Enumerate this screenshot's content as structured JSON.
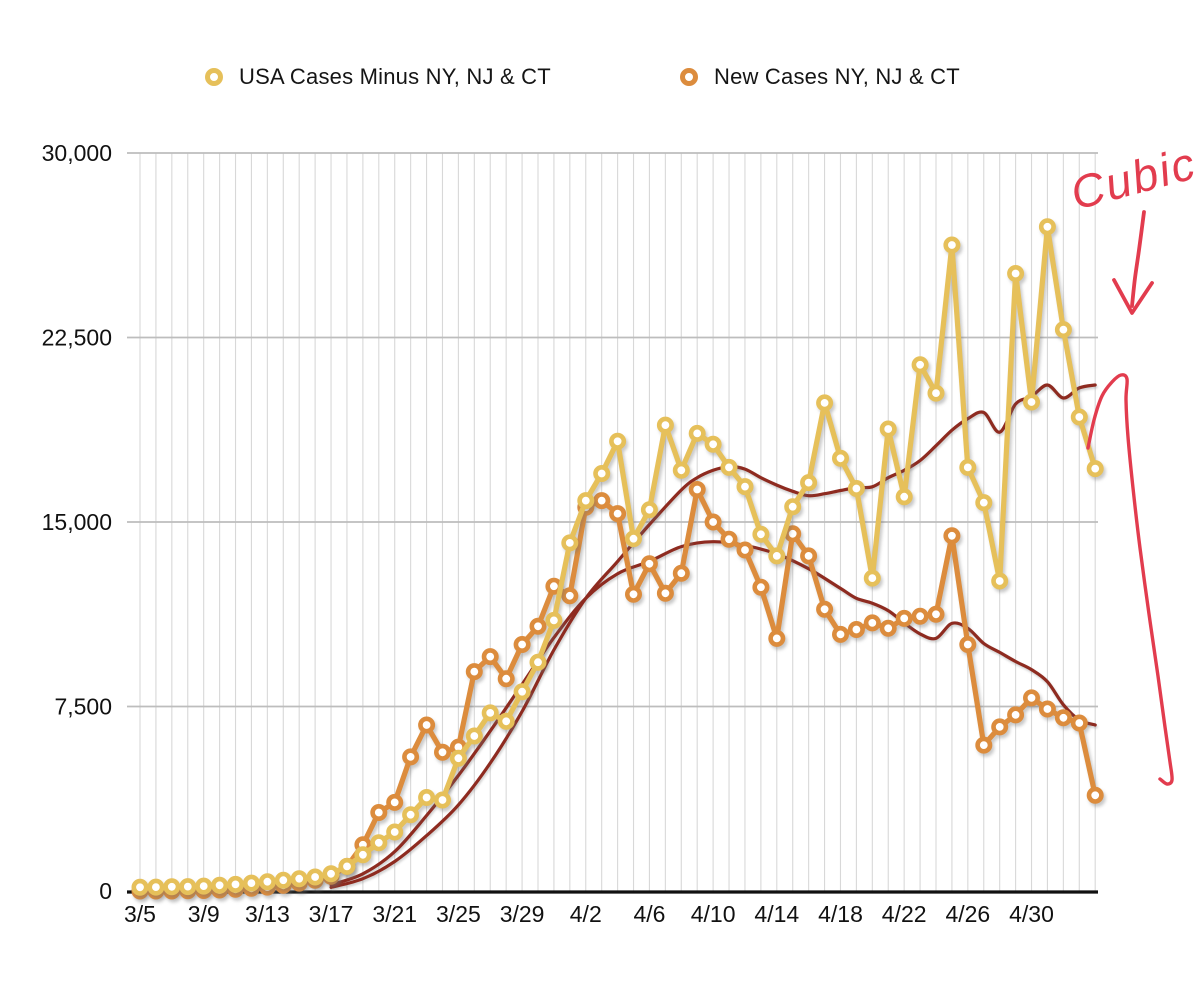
{
  "chart_data": {
    "type": "line",
    "title": "",
    "legend_position": "top",
    "grid": true,
    "ylim": [
      0,
      30000
    ],
    "y_tick_values": [
      0,
      7500,
      15000,
      22500,
      30000
    ],
    "y_tick_labels": [
      "0",
      "7,500",
      "15,000",
      "22,500",
      "30,000"
    ],
    "x_tick_labels": [
      "3/5",
      "3/9",
      "3/13",
      "3/17",
      "3/21",
      "3/25",
      "3/29",
      "4/2",
      "4/6",
      "4/10",
      "4/14",
      "4/18",
      "4/22",
      "4/26",
      "4/30"
    ],
    "x_tick_step_days": 4,
    "dates": [
      "3/5",
      "3/6",
      "3/7",
      "3/8",
      "3/9",
      "3/10",
      "3/11",
      "3/12",
      "3/13",
      "3/14",
      "3/15",
      "3/16",
      "3/17",
      "3/18",
      "3/19",
      "3/20",
      "3/21",
      "3/22",
      "3/23",
      "3/24",
      "3/25",
      "3/26",
      "3/27",
      "3/28",
      "3/29",
      "3/30",
      "3/31",
      "4/1",
      "4/2",
      "4/3",
      "4/4",
      "4/5",
      "4/6",
      "4/7",
      "4/8",
      "4/9",
      "4/10",
      "4/11",
      "4/12",
      "4/13",
      "4/14",
      "4/15",
      "4/16",
      "4/17",
      "4/18",
      "4/19",
      "4/20",
      "4/21",
      "4/22",
      "4/23",
      "4/24",
      "4/25",
      "4/26",
      "4/27",
      "4/28",
      "4/29",
      "4/30",
      "5/1",
      "5/2",
      "5/3",
      "5/4"
    ],
    "series": [
      {
        "name": "USA Cases Minus NY, NJ & CT",
        "color": "#e6c05a",
        "values": [
          150,
          160,
          170,
          180,
          200,
          230,
          270,
          320,
          380,
          440,
          500,
          570,
          700,
          1000,
          1470,
          1960,
          2400,
          3100,
          3800,
          3700,
          5400,
          6300,
          7240,
          6900,
          8100,
          9300,
          11000,
          14150,
          15870,
          16970,
          18280,
          14320,
          15500,
          18940,
          17100,
          18600,
          18160,
          17220,
          16440,
          14500,
          13620,
          15620,
          16600,
          19840,
          17590,
          16360,
          12720,
          18780,
          16030,
          21390,
          20240,
          26260,
          17220,
          15790,
          12600,
          25100,
          19880,
          27000,
          22820,
          19270,
          17170
        ]
      },
      {
        "name": "New Cases NY, NJ & CT",
        "color": "#dc8c3d",
        "values": [
          0,
          0,
          0,
          10,
          20,
          40,
          70,
          110,
          160,
          230,
          320,
          440,
          600,
          1000,
          1880,
          3190,
          3600,
          5450,
          6750,
          5640,
          5850,
          8920,
          9530,
          8630,
          10020,
          10760,
          12390,
          12000,
          15600,
          15870,
          15340,
          12060,
          13300,
          12100,
          12920,
          16320,
          15000,
          14300,
          13860,
          12350,
          10270,
          14520,
          13620,
          11450,
          10430,
          10630,
          10900,
          10680,
          11080,
          11170,
          11250,
          14440,
          10020,
          5930,
          6670,
          7160,
          7850,
          7400,
          7040,
          6830,
          3890
        ]
      }
    ],
    "fit_curves": [
      {
        "name": "cubic-fit-usa",
        "color": "#8e2b20",
        "points": [
          [
            12,
            150
          ],
          [
            14,
            500
          ],
          [
            16,
            1200
          ],
          [
            18,
            2250
          ],
          [
            20,
            3500
          ],
          [
            22,
            5200
          ],
          [
            24,
            7300
          ],
          [
            26,
            9800
          ],
          [
            28,
            11900
          ],
          [
            30,
            13400
          ],
          [
            32,
            14900
          ],
          [
            34,
            16300
          ],
          [
            35,
            16800
          ],
          [
            36,
            17100
          ],
          [
            37,
            17250
          ],
          [
            38,
            17150
          ],
          [
            39,
            16800
          ],
          [
            40,
            16500
          ],
          [
            41,
            16250
          ],
          [
            42,
            16070
          ],
          [
            43,
            16150
          ],
          [
            44,
            16280
          ],
          [
            45,
            16400
          ],
          [
            46,
            16430
          ],
          [
            47,
            16800
          ],
          [
            48,
            17100
          ],
          [
            49,
            17500
          ],
          [
            50,
            18100
          ],
          [
            51,
            18730
          ],
          [
            52,
            19200
          ],
          [
            53,
            19450
          ],
          [
            54,
            18650
          ],
          [
            55,
            19800
          ],
          [
            56,
            20100
          ],
          [
            57,
            20570
          ],
          [
            58,
            20040
          ],
          [
            59,
            20450
          ],
          [
            60,
            20570
          ]
        ]
      },
      {
        "name": "cubic-fit-tristate",
        "color": "#8e2b20",
        "points": [
          [
            12,
            250
          ],
          [
            14,
            700
          ],
          [
            16,
            1600
          ],
          [
            18,
            3070
          ],
          [
            20,
            4700
          ],
          [
            22,
            6500
          ],
          [
            24,
            8400
          ],
          [
            26,
            10300
          ],
          [
            28,
            11900
          ],
          [
            30,
            12900
          ],
          [
            32,
            13400
          ],
          [
            34,
            14000
          ],
          [
            36,
            14200
          ],
          [
            38,
            14050
          ],
          [
            40,
            13700
          ],
          [
            42,
            13100
          ],
          [
            44,
            12300
          ],
          [
            45,
            11900
          ],
          [
            46,
            11700
          ],
          [
            47,
            11400
          ],
          [
            48,
            10900
          ],
          [
            49,
            10450
          ],
          [
            50,
            10270
          ],
          [
            51,
            10880
          ],
          [
            52,
            10680
          ],
          [
            53,
            10060
          ],
          [
            54,
            9700
          ],
          [
            55,
            9330
          ],
          [
            56,
            9000
          ],
          [
            57,
            8510
          ],
          [
            58,
            7570
          ],
          [
            59,
            6950
          ],
          [
            60,
            6750
          ]
        ]
      }
    ],
    "annotation": {
      "text": "Cubic",
      "color": "#e23c4e",
      "arrow_shaft": [
        [
          1144,
          212
        ],
        [
          1139,
          250
        ],
        [
          1135,
          278
        ],
        [
          1132,
          306
        ]
      ],
      "arrow_head": [
        [
          1114,
          280
        ],
        [
          1132,
          313
        ],
        [
          1152,
          283
        ]
      ],
      "hand_curve": [
        [
          1088,
          448
        ],
        [
          1094,
          420
        ],
        [
          1102,
          396
        ],
        [
          1112,
          382
        ],
        [
          1121,
          375
        ],
        [
          1127,
          379
        ],
        [
          1126,
          400
        ],
        [
          1128,
          437
        ],
        [
          1133,
          488
        ],
        [
          1140,
          548
        ],
        [
          1149,
          614
        ],
        [
          1158,
          676
        ],
        [
          1165,
          727
        ],
        [
          1170,
          762
        ],
        [
          1172,
          780
        ],
        [
          1167,
          784
        ],
        [
          1160,
          779
        ]
      ]
    },
    "colors": {
      "grid": "#d8d8d8",
      "grid_major": "#bdbdbd",
      "axis": "#111111",
      "text": "#111111"
    }
  }
}
